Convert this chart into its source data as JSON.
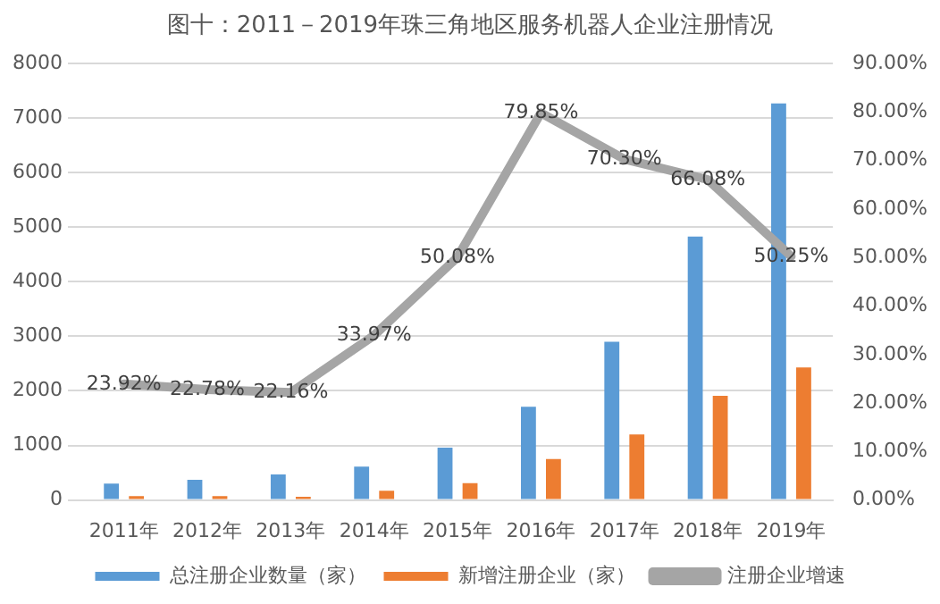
{
  "chart_data": {
    "type": "bar",
    "title": "图十：2011－2019年珠三角地区服务机器人企业注册情况",
    "categories": [
      "2011年",
      "2012年",
      "2013年",
      "2014年",
      "2015年",
      "2016年",
      "2017年",
      "2018年",
      "2019年"
    ],
    "series": [
      {
        "name": "总注册企业数量（家）",
        "color": "#5b9bd5",
        "values": [
          300,
          370,
          470,
          610,
          960,
          1710,
          2900,
          4830,
          7270
        ]
      },
      {
        "name": "新增注册企业（家）",
        "color": "#ed7d31",
        "values": [
          70,
          70,
          60,
          170,
          310,
          750,
          1200,
          1910,
          2430
        ]
      },
      {
        "name": "注册企业增速",
        "type": "line",
        "axis": "y2",
        "color": "#a5a5a5",
        "values": [
          23.92,
          22.78,
          22.16,
          33.97,
          50.08,
          79.85,
          70.3,
          66.08,
          50.25
        ],
        "value_labels": [
          "23.92%",
          "22.78%",
          "22.16%",
          "33.97%",
          "50.08%",
          "79.85%",
          "70.30%",
          "66.08%",
          "50.25%"
        ]
      }
    ],
    "ylim": [
      0,
      8000
    ],
    "yticks": [
      0,
      1000,
      2000,
      3000,
      4000,
      5000,
      6000,
      7000,
      8000
    ],
    "y2lim": [
      0,
      90
    ],
    "y2ticks": [
      {
        "value": 0,
        "label": "0.00%"
      },
      {
        "value": 10,
        "label": "10.00%"
      },
      {
        "value": 20,
        "label": "20.00%"
      },
      {
        "value": 30,
        "label": "30.00%"
      },
      {
        "value": 40,
        "label": "40.00%"
      },
      {
        "value": 50,
        "label": "50.00%"
      },
      {
        "value": 60,
        "label": "60.00%"
      },
      {
        "value": 70,
        "label": "70.00%"
      },
      {
        "value": 80,
        "label": "80.00%"
      },
      {
        "value": 90,
        "label": "90.00%"
      }
    ],
    "grid": "y",
    "legend": "bottom",
    "marker": "none",
    "line_style": "solid"
  }
}
